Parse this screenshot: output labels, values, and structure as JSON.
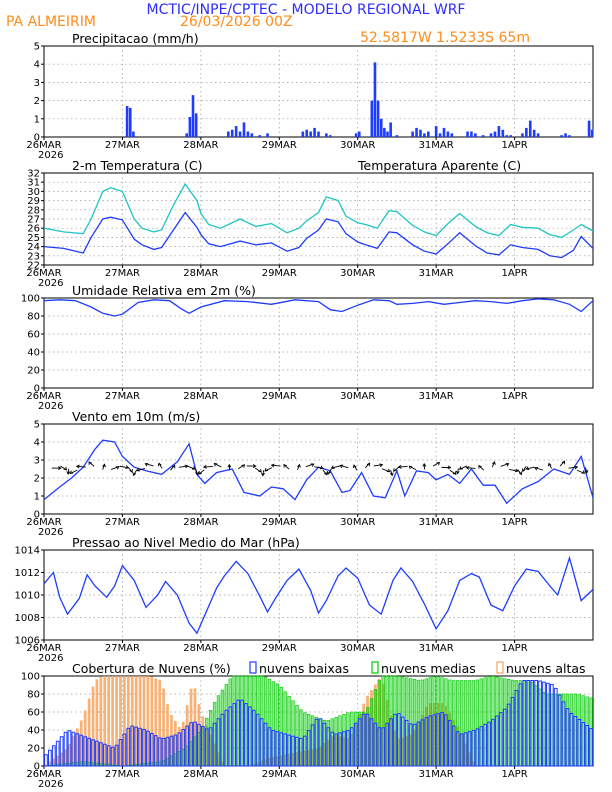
{
  "header": {
    "title": "MCTIC/INPE/CPTEC - MODELO REGIONAL WRF",
    "location": "PA ALMEIRIM",
    "run": "26/03/2026 00Z",
    "coords": "52.5817W 1.5233S 65m"
  },
  "colors": {
    "title_blue": "#2d2dff",
    "orange": "#ff8c1a",
    "cyan": "#22c4c4",
    "blue": "#1e3cff",
    "green": "#00cc00",
    "cloud_orange": "#f4a460"
  },
  "x_axis": {
    "labels": [
      "26MAR",
      "27MAR",
      "28MAR",
      "29MAR",
      "30MAR",
      "31MAR",
      "1APR"
    ],
    "year": "2026",
    "range_days": [
      0,
      7
    ]
  },
  "chart_data": [
    {
      "id": "precip",
      "type": "bar",
      "title": "Precipitacao (mm/h)",
      "ylim": [
        0,
        5
      ],
      "yticks": [
        "0",
        "1",
        "2",
        "3",
        "4",
        "5"
      ],
      "x_days": [
        1.06,
        1.1,
        1.14,
        1.82,
        1.86,
        1.9,
        1.94,
        2.35,
        2.4,
        2.45,
        2.5,
        2.55,
        2.6,
        2.65,
        2.75,
        2.85,
        3.3,
        3.35,
        3.4,
        3.45,
        3.5,
        3.6,
        3.65,
        3.98,
        4.02,
        4.18,
        4.22,
        4.26,
        4.3,
        4.34,
        4.38,
        4.42,
        4.5,
        4.7,
        4.75,
        4.8,
        4.85,
        4.9,
        5.0,
        5.05,
        5.1,
        5.15,
        5.2,
        5.4,
        5.45,
        5.5,
        5.6,
        5.7,
        5.75,
        5.8,
        5.85,
        5.9,
        5.95,
        6.1,
        6.15,
        6.2,
        6.25,
        6.3,
        6.6,
        6.65,
        6.7,
        6.95,
        6.99
      ],
      "values": [
        1.7,
        1.6,
        0.3,
        0.2,
        1.1,
        2.3,
        1.3,
        0.3,
        0.4,
        0.6,
        0.3,
        0.8,
        0.3,
        0.2,
        0.1,
        0.2,
        0.3,
        0.4,
        0.3,
        0.5,
        0.3,
        0.2,
        0.1,
        0.2,
        0.3,
        2.0,
        4.1,
        2.0,
        1.0,
        0.5,
        0.3,
        0.8,
        0.1,
        0.3,
        0.5,
        0.4,
        0.2,
        0.3,
        0.6,
        0.2,
        0.5,
        0.3,
        0.2,
        0.3,
        0.3,
        0.2,
        0.1,
        0.2,
        0.3,
        0.6,
        0.4,
        0.1,
        0.1,
        0.2,
        0.5,
        0.9,
        0.4,
        0.2,
        0.1,
        0.2,
        0.1,
        0.9,
        0.4
      ]
    },
    {
      "id": "temp",
      "type": "line",
      "title": "2-m Temperatura (C)",
      "legend": "Temperatura Aparente (C)",
      "ylim": [
        22,
        32
      ],
      "yticks": [
        "22",
        "23",
        "24",
        "25",
        "26",
        "27",
        "28",
        "29",
        "30",
        "31",
        "32"
      ],
      "series": [
        {
          "name": "Temperatura Aparente (C)",
          "color": "cyan",
          "x": [
            0,
            0.25,
            0.5,
            0.6,
            0.75,
            0.85,
            1.0,
            1.15,
            1.25,
            1.4,
            1.5,
            1.65,
            1.8,
            1.95,
            2.0,
            2.1,
            2.25,
            2.5,
            2.7,
            2.9,
            3.1,
            3.25,
            3.35,
            3.5,
            3.6,
            3.75,
            3.85,
            4.0,
            4.1,
            4.25,
            4.4,
            4.5,
            4.7,
            4.85,
            5.0,
            5.15,
            5.3,
            5.5,
            5.65,
            5.8,
            5.95,
            6.1,
            6.3,
            6.45,
            6.6,
            6.75,
            6.85,
            7.0
          ],
          "values": [
            26,
            25.6,
            25.4,
            27,
            30,
            30.4,
            30,
            27,
            26,
            25.6,
            25.8,
            28.5,
            30.8,
            29,
            27.6,
            26.4,
            26,
            27,
            26.2,
            26.5,
            25.5,
            26,
            26.8,
            27.7,
            29.4,
            29,
            27.3,
            26.6,
            26.4,
            26,
            27.9,
            27.8,
            26.3,
            25.6,
            25.2,
            26.5,
            27.6,
            26.2,
            25.5,
            25.2,
            26.4,
            26.1,
            26,
            25.3,
            25,
            25.8,
            26.4,
            25.7
          ]
        },
        {
          "name": "2-m Temperatura (C)",
          "color": "blue",
          "x": [
            0,
            0.25,
            0.5,
            0.6,
            0.75,
            0.85,
            1.0,
            1.15,
            1.25,
            1.4,
            1.5,
            1.65,
            1.8,
            1.95,
            2.0,
            2.1,
            2.25,
            2.5,
            2.7,
            2.9,
            3.1,
            3.25,
            3.35,
            3.5,
            3.6,
            3.75,
            3.85,
            4.0,
            4.1,
            4.25,
            4.4,
            4.5,
            4.7,
            4.85,
            5.0,
            5.15,
            5.3,
            5.5,
            5.65,
            5.8,
            5.95,
            6.1,
            6.3,
            6.45,
            6.6,
            6.75,
            6.85,
            7.0
          ],
          "values": [
            24,
            23.8,
            23.3,
            25,
            27,
            27.2,
            26.9,
            24.8,
            24.2,
            23.7,
            23.9,
            25.8,
            27.7,
            26.1,
            25.3,
            24.3,
            24,
            24.6,
            24.2,
            24.4,
            23.5,
            23.9,
            24.9,
            25.8,
            27,
            26.7,
            25.4,
            24.5,
            24.2,
            23.8,
            25.6,
            25.5,
            24.2,
            23.5,
            23.2,
            24.3,
            25.5,
            24.1,
            23.3,
            23.1,
            24.2,
            23.9,
            23.7,
            23,
            22.8,
            23.6,
            25.1,
            23.8
          ]
        }
      ]
    },
    {
      "id": "rh",
      "type": "line",
      "title": "Umidade Relativa em 2m (%)",
      "ylim": [
        0,
        100
      ],
      "yticks": [
        "0",
        "20",
        "40",
        "60",
        "80",
        "100"
      ],
      "series": [
        {
          "name": "Umidade Relativa",
          "color": "blue",
          "x": [
            0,
            0.2,
            0.4,
            0.6,
            0.75,
            0.9,
            1.0,
            1.2,
            1.4,
            1.6,
            1.75,
            1.85,
            2.0,
            2.3,
            2.6,
            2.9,
            3.2,
            3.5,
            3.65,
            3.8,
            4.0,
            4.2,
            4.4,
            4.5,
            4.7,
            4.9,
            5.1,
            5.3,
            5.5,
            5.7,
            5.9,
            6.1,
            6.3,
            6.5,
            6.7,
            6.85,
            7.0
          ],
          "values": [
            97,
            98,
            97,
            90,
            83,
            80,
            82,
            95,
            98,
            97,
            88,
            83,
            90,
            97,
            96,
            93,
            98,
            96,
            87,
            85,
            92,
            98,
            97,
            93,
            94,
            96,
            93,
            95,
            97,
            96,
            94,
            97,
            99,
            98,
            93,
            85,
            97
          ]
        }
      ]
    },
    {
      "id": "wind",
      "type": "line",
      "title": "Vento em 10m (m/s)",
      "ylim": [
        0,
        5
      ],
      "yticks": [
        "0",
        "1",
        "2",
        "3",
        "4",
        "5"
      ],
      "series": [
        {
          "name": "Vento em 10m",
          "color": "blue",
          "x": [
            0,
            0.2,
            0.35,
            0.5,
            0.65,
            0.75,
            0.9,
            1.0,
            1.15,
            1.3,
            1.5,
            1.7,
            1.85,
            1.95,
            2.05,
            2.2,
            2.4,
            2.55,
            2.75,
            2.9,
            3.05,
            3.2,
            3.35,
            3.5,
            3.65,
            3.8,
            3.9,
            4.05,
            4.2,
            4.35,
            4.5,
            4.6,
            4.75,
            4.9,
            5.0,
            5.15,
            5.3,
            5.45,
            5.6,
            5.75,
            5.9,
            6.1,
            6.3,
            6.5,
            6.7,
            6.85,
            7.0
          ],
          "values": [
            0.8,
            1.5,
            2.0,
            2.6,
            3.6,
            4.1,
            4.0,
            3.2,
            2.6,
            2.4,
            2.2,
            2.9,
            3.9,
            2.2,
            1.7,
            2.3,
            2.5,
            1.2,
            1.0,
            1.5,
            1.4,
            0.8,
            1.9,
            2.6,
            2.4,
            1.2,
            1.3,
            2.3,
            1.0,
            0.9,
            2.4,
            1.0,
            2.4,
            2.3,
            1.9,
            2.2,
            1.7,
            2.5,
            1.6,
            1.6,
            0.6,
            1.4,
            1.8,
            2.5,
            2.2,
            3.2,
            0.9
          ]
        }
      ]
    },
    {
      "id": "pressure",
      "type": "line",
      "title": "Pressao ao Nivel Medio do Mar (hPa)",
      "ylim": [
        1006,
        1014
      ],
      "yticks": [
        "1006",
        "1008",
        "1010",
        "1012",
        "1014"
      ],
      "series": [
        {
          "name": "Pressao",
          "color": "blue",
          "x": [
            0,
            0.12,
            0.2,
            0.3,
            0.45,
            0.55,
            0.65,
            0.8,
            0.9,
            1.0,
            1.15,
            1.3,
            1.45,
            1.55,
            1.7,
            1.85,
            1.95,
            2.1,
            2.2,
            2.3,
            2.45,
            2.6,
            2.75,
            2.85,
            2.95,
            3.1,
            3.25,
            3.4,
            3.5,
            3.6,
            3.75,
            3.85,
            4.0,
            4.15,
            4.3,
            4.45,
            4.55,
            4.7,
            4.85,
            5.0,
            5.15,
            5.3,
            5.45,
            5.55,
            5.7,
            5.85,
            6.0,
            6.15,
            6.3,
            6.45,
            6.55,
            6.7,
            6.85,
            7.0
          ],
          "values": [
            1011,
            1012,
            1009.8,
            1008.3,
            1009.7,
            1011.8,
            1010.8,
            1009.8,
            1010.8,
            1012.6,
            1011.3,
            1008.9,
            1010,
            1011.2,
            1010,
            1007.5,
            1006.6,
            1009,
            1010.6,
            1011.7,
            1013,
            1011.9,
            1009.9,
            1008.5,
            1009.7,
            1011.3,
            1012.3,
            1010.4,
            1008.4,
            1009.5,
            1011.7,
            1012.4,
            1011.5,
            1009.1,
            1008.3,
            1011.3,
            1012.4,
            1011.2,
            1009.2,
            1007,
            1008.6,
            1011.3,
            1011.9,
            1011.6,
            1009.1,
            1008.6,
            1010.8,
            1012.3,
            1012.1,
            1010.8,
            1010,
            1013.3,
            1009.5,
            1010.5
          ]
        }
      ]
    },
    {
      "id": "clouds",
      "type": "bar",
      "title": "Cobertura de Nuvens (%)",
      "legend": [
        "nuvens baixas",
        "nuvens medias",
        "nuvens altas"
      ],
      "ylim": [
        0,
        100
      ],
      "yticks": [
        "0",
        "20",
        "40",
        "60",
        "80",
        "100"
      ],
      "series": [
        {
          "name": "nuvens altas",
          "color": "cloud_orange",
          "x": [
            0,
            0.3,
            0.5,
            0.65,
            0.75,
            0.9,
            1.05,
            1.2,
            1.35,
            1.5,
            1.6,
            1.75,
            1.9,
            2.0,
            2.3,
            2.6,
            2.9,
            3.2,
            3.5,
            3.7,
            3.9,
            4.1,
            4.3,
            4.5,
            4.7,
            4.9,
            5.1,
            5.3,
            5.5,
            5.7,
            5.9,
            6.1,
            6.3,
            6.5,
            6.7,
            7.0
          ],
          "values": [
            0,
            20,
            55,
            95,
            100,
            100,
            100,
            100,
            100,
            95,
            60,
            40,
            95,
            60,
            0,
            0,
            10,
            15,
            20,
            35,
            30,
            75,
            100,
            30,
            35,
            70,
            70,
            40,
            0,
            0,
            0,
            0,
            0,
            0,
            0,
            0
          ]
        },
        {
          "name": "nuvens medias",
          "color": "green",
          "x": [
            0,
            0.5,
            1.0,
            1.5,
            1.8,
            2.0,
            2.2,
            2.4,
            2.6,
            2.8,
            3.0,
            3.3,
            3.6,
            3.9,
            4.1,
            4.3,
            4.5,
            4.8,
            5.0,
            5.2,
            5.5,
            5.7,
            6.0,
            6.2,
            6.4,
            6.6,
            6.8,
            7.0
          ],
          "values": [
            0,
            5,
            0,
            5,
            20,
            40,
            75,
            100,
            100,
            100,
            90,
            60,
            50,
            60,
            60,
            100,
            100,
            95,
            100,
            95,
            95,
            100,
            95,
            95,
            80,
            80,
            80,
            75
          ]
        },
        {
          "name": "nuvens baixas",
          "color": "blue",
          "x": [
            0,
            0.3,
            0.6,
            0.9,
            1.1,
            1.3,
            1.5,
            1.7,
            1.9,
            2.1,
            2.3,
            2.5,
            2.7,
            2.9,
            3.1,
            3.3,
            3.5,
            3.7,
            3.9,
            4.1,
            4.3,
            4.5,
            4.7,
            4.9,
            5.1,
            5.3,
            5.5,
            5.7,
            5.9,
            6.1,
            6.3,
            6.5,
            6.7,
            7.0
          ],
          "values": [
            10,
            40,
            30,
            20,
            45,
            40,
            30,
            35,
            50,
            40,
            60,
            75,
            60,
            40,
            35,
            30,
            55,
            35,
            40,
            60,
            40,
            60,
            45,
            55,
            60,
            35,
            40,
            50,
            65,
            95,
            95,
            90,
            60,
            40
          ]
        }
      ]
    }
  ]
}
